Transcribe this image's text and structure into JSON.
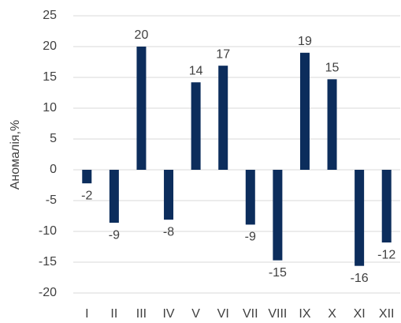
{
  "chart_data": {
    "type": "bar",
    "y_label": "Аномалія,%",
    "categories": [
      "I",
      "II",
      "III",
      "IV",
      "V",
      "VI",
      "VII",
      "VIII",
      "IX",
      "X",
      "XI",
      "XII"
    ],
    "values": [
      -2.2,
      -8.6,
      20,
      -8.1,
      14.2,
      16.9,
      -8.9,
      -14.7,
      19,
      14.7,
      -15.6,
      -11.8
    ],
    "value_labels": [
      "-2",
      "-9",
      "20",
      "-8",
      "14",
      "17",
      "-9",
      "-15",
      "19",
      "15",
      "-16",
      "-12"
    ],
    "color": "#0c2d5c",
    "ylim": [
      -20,
      25
    ],
    "yticks": [
      -20,
      -15,
      -10,
      -5,
      0,
      5,
      10,
      15,
      20,
      25
    ],
    "grid": true
  }
}
